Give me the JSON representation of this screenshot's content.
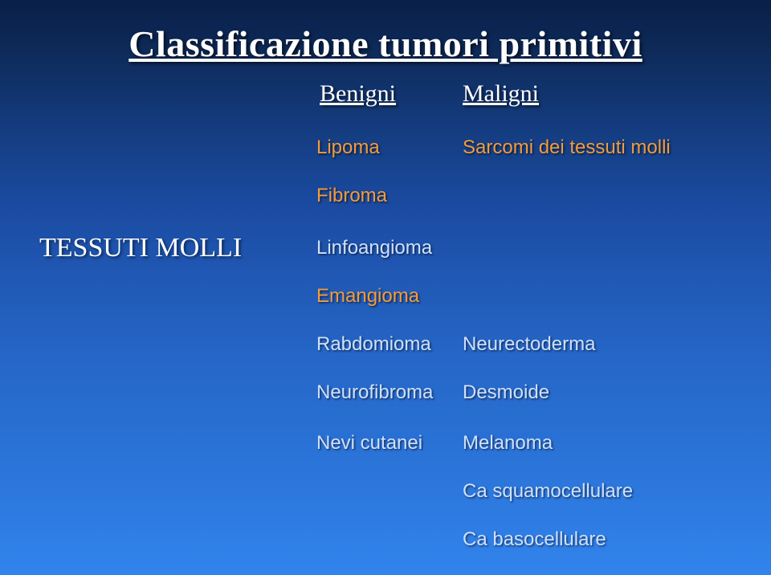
{
  "title": "Classificazione tumori primitivi",
  "headers": {
    "benigni": "Benigni",
    "maligni": "Maligni"
  },
  "category": "TESSUTI MOLLI",
  "cells": {
    "lipoma": "Lipoma",
    "sarcomi": "Sarcomi dei tessuti molli",
    "fibroma": "Fibroma",
    "linfoangioma": "Linfoangioma",
    "emangioma": "Emangioma",
    "rabdomioma": "Rabdomioma",
    "neurectoderma": "Neurectoderma",
    "neurofibroma": "Neurofibroma",
    "desmoide": "Desmoide",
    "nevi": "Nevi cutanei",
    "melanoma": "Melanoma",
    "squamo": "Ca squamocellulare",
    "baso": "Ca basocellulare"
  },
  "colors": {
    "orange": "#f29b3e",
    "light": "#cfe0ff",
    "title": "#ffffff",
    "bg_top": "#0a1f4a",
    "bg_bottom": "#3184ec"
  },
  "fontsizes": {
    "title": 46,
    "headers": 30,
    "category": 34,
    "cells": 24
  }
}
